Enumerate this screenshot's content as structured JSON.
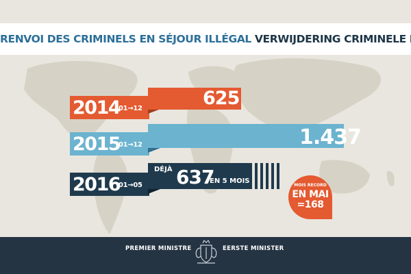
{
  "header": {
    "title_fr": "RENVOI DES CRIMINELS EN SÉJOUR ILLÉGAL",
    "title_nl": "VERWIJDERING CRIMINELE ILLEGALEN"
  },
  "colors": {
    "orange": "#e45a31",
    "light_blue": "#6bb3cf",
    "navy": "#1f3a4d",
    "background": "#e9e6df",
    "map": "#d7d2c6",
    "footer": "#253443"
  },
  "chart_data": {
    "type": "bar",
    "orientation": "horizontal",
    "categories": [
      "2014",
      "2015",
      "2016"
    ],
    "periods": [
      "01→12",
      "01→12",
      "01→05"
    ],
    "values": [
      625,
      1437,
      637
    ],
    "value_labels": [
      "625",
      "1.437",
      "637"
    ],
    "bar_colors": [
      "#e45a31",
      "#6bb3cf",
      "#1f3a4d"
    ],
    "annotations": {
      "deja": "DÉJÀ",
      "months": "EN 5 MOIS"
    },
    "record": {
      "line1": "MOIS RECORD",
      "line2": "EN MAI",
      "line3": "=168",
      "value": 168
    }
  },
  "footer": {
    "left": "PREMIER MINISTRE",
    "right": "EERSTE MINISTER",
    "emblem": "royal-coat-of-arms-icon"
  }
}
